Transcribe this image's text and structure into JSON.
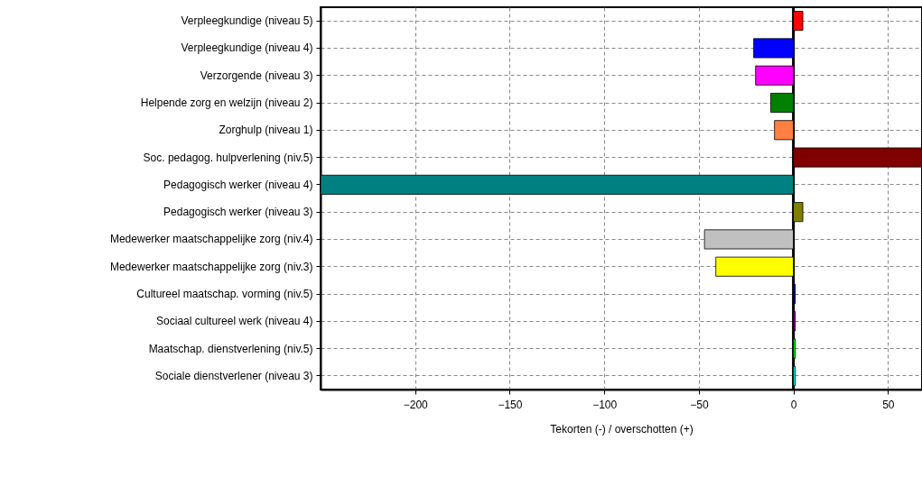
{
  "chart_data": {
    "type": "bar",
    "orientation": "horizontal",
    "xlabel": "Tekorten (-) / overschotten (+)",
    "categories": [
      "Verpleegkundige (niveau 5)",
      "Verpleegkundige (niveau 4)",
      "Verzorgende (niveau 3)",
      "Helpende zorg en welzijn (niveau 2)",
      "Zorghulp (niveau 1)",
      "Soc. pedagog. hulpverlening (niv.5)",
      "Pedagogisch werker (niveau 4)",
      "Pedagogisch werker (niveau 3)",
      "Medewerker maatschappelijke zorg (niv.4)",
      "Medewerker maatschappelijke zorg (niv.3)",
      "Cultureel maatschap. vorming (niv.5)",
      "Sociaal cultureel werk (niveau 4)",
      "Maatschap. dienstverlening (niv.5)",
      "Sociale dienstverlener (niveau 3)"
    ],
    "values": [
      5,
      -21,
      -20,
      -12,
      -10,
      68,
      -250,
      5,
      -47,
      -41,
      1,
      1,
      1,
      1
    ],
    "colors": [
      "#ff0000",
      "#0000ff",
      "#ff00ff",
      "#008000",
      "#ff8040",
      "#800000",
      "#008080",
      "#808000",
      "#c0c0c0",
      "#ffff00",
      "#000080",
      "#800080",
      "#00ff00",
      "#00ffff"
    ],
    "xlim": [
      -250,
      68
    ],
    "xticks": [
      -200,
      -150,
      -100,
      -50,
      0,
      50
    ],
    "grid": true
  }
}
